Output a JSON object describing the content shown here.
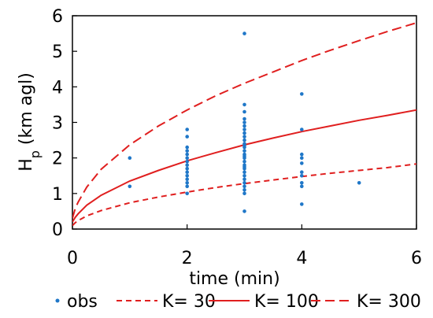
{
  "chart_data": {
    "type": "scatter",
    "xlabel": "time (min)",
    "ylabel": "H",
    "ylabel_sub": "p",
    "ylabel_rest": " (km agl)",
    "xlim": [
      0,
      6
    ],
    "ylim": [
      0,
      6
    ],
    "xticks": [
      "0",
      "2",
      "4",
      "6"
    ],
    "xtick_values": [
      0,
      2,
      4,
      6
    ],
    "yticks": [
      "0",
      "1",
      "2",
      "3",
      "4",
      "5",
      "6"
    ],
    "ytick_values": [
      0,
      1,
      2,
      3,
      4,
      5,
      6
    ],
    "grid": false,
    "legend_position": "bottom",
    "colors": {
      "obs": "#1f77c8",
      "model": "#e01f1f"
    },
    "series": [
      {
        "name": "obs",
        "kind": "scatter",
        "x": [
          1,
          1,
          2,
          2,
          2,
          2,
          2,
          2,
          2,
          2,
          2,
          2,
          2,
          2,
          2,
          2,
          2,
          3,
          3,
          3,
          3,
          3,
          3,
          3,
          3,
          3,
          3,
          3,
          3,
          3,
          3,
          3,
          3,
          3,
          3,
          3,
          3,
          3,
          3,
          3,
          3,
          3,
          3,
          3,
          3,
          3,
          4,
          4,
          4,
          4,
          4,
          4,
          4,
          4,
          4,
          4,
          5
        ],
        "y": [
          2.0,
          1.2,
          2.8,
          2.6,
          2.3,
          2.2,
          2.1,
          2.0,
          1.9,
          1.8,
          1.7,
          1.6,
          1.5,
          1.4,
          1.3,
          1.2,
          1.0,
          5.5,
          3.5,
          3.3,
          3.1,
          3.0,
          2.9,
          2.8,
          2.7,
          2.6,
          2.5,
          2.4,
          2.3,
          2.2,
          2.1,
          2.0,
          1.9,
          1.8,
          1.7,
          1.6,
          1.5,
          1.4,
          1.3,
          1.2,
          1.1,
          1.0,
          0.5,
          2.35,
          2.05,
          1.75,
          3.8,
          2.8,
          2.1,
          2.0,
          1.6,
          1.5,
          1.3,
          1.2,
          0.7,
          1.85,
          1.3
        ]
      },
      {
        "name": "K= 30",
        "kind": "line",
        "style": "dashed",
        "x": [
          0,
          0.05,
          0.1,
          0.25,
          0.5,
          1,
          1.5,
          2,
          2.5,
          3,
          3.5,
          4,
          4.5,
          5,
          5.5,
          6
        ],
        "y": [
          0.1,
          0.18,
          0.24,
          0.37,
          0.52,
          0.74,
          0.9,
          1.04,
          1.17,
          1.28,
          1.38,
          1.48,
          1.57,
          1.65,
          1.73,
          1.83
        ]
      },
      {
        "name": "K= 100",
        "kind": "line",
        "style": "solid",
        "x": [
          0,
          0.05,
          0.1,
          0.25,
          0.5,
          1,
          1.5,
          2,
          2.5,
          3,
          3.5,
          4,
          4.5,
          5,
          5.5,
          6
        ],
        "y": [
          0.2,
          0.33,
          0.43,
          0.67,
          0.95,
          1.35,
          1.65,
          1.92,
          2.15,
          2.37,
          2.56,
          2.74,
          2.9,
          3.06,
          3.2,
          3.35
        ]
      },
      {
        "name": "K= 300",
        "kind": "line",
        "style": "longdash",
        "x": [
          0,
          0.05,
          0.1,
          0.25,
          0.5,
          1,
          1.5,
          2,
          2.5,
          3,
          3.5,
          4,
          4.5,
          5,
          5.5,
          6
        ],
        "y": [
          0.3,
          0.58,
          0.76,
          1.18,
          1.68,
          2.37,
          2.9,
          3.35,
          3.75,
          4.1,
          4.42,
          4.74,
          5.03,
          5.3,
          5.56,
          5.8
        ]
      }
    ]
  }
}
